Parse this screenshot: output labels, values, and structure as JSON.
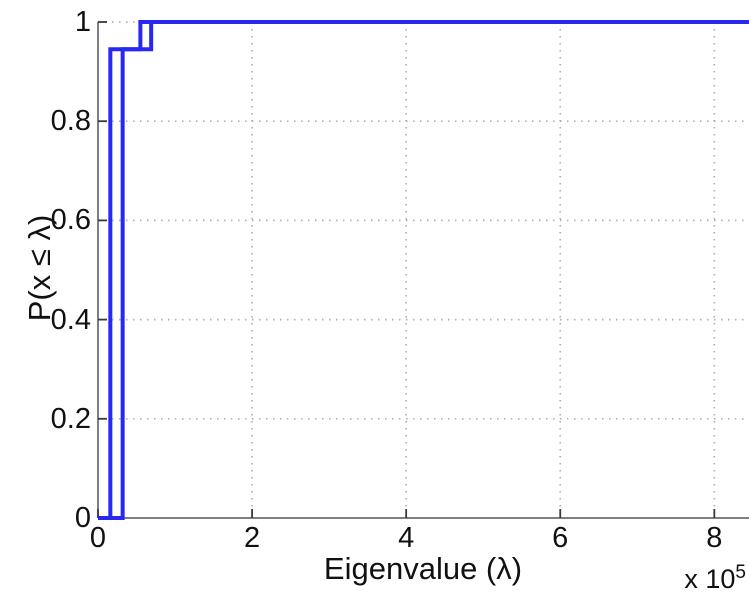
{
  "figure": {
    "background": "#ffffff"
  },
  "chart_data": {
    "type": "line",
    "subtype": "empirical-cdf-step",
    "title": "",
    "xlabel": "Eigenvalue (λ)",
    "ylabel": "P(x ≤ λ)",
    "x_multiplier_prefix": "x 10",
    "x_multiplier_exponent": "5",
    "xlim": [
      0,
      845000
    ],
    "ylim": [
      0,
      1
    ],
    "xtick_values": [
      0,
      200000,
      400000,
      600000,
      800000
    ],
    "xtick_labels": [
      "0",
      "2",
      "4",
      "6",
      "8"
    ],
    "ytick_values": [
      0,
      0.2,
      0.4,
      0.6,
      0.8,
      1
    ],
    "ytick_labels": [
      "0",
      "0.2",
      "0.4",
      "0.6",
      "0.8",
      "1"
    ],
    "grid": true,
    "grid_style": "dotted",
    "grid_color": "#b1b1b1",
    "axis_color": "#555555",
    "tick_color": "#3a3a3a",
    "tick_label_color": "#111111",
    "line_color": "#2828f0",
    "line_width": 4,
    "legend": null,
    "series": [
      {
        "name": "ecdf-curve-1",
        "color": "#2828f0",
        "points": [
          [
            0,
            0
          ],
          [
            16000,
            0
          ],
          [
            16000,
            0.945
          ],
          [
            55000,
            0.945
          ],
          [
            55000,
            1
          ],
          [
            845000,
            1
          ]
        ]
      },
      {
        "name": "ecdf-curve-2",
        "color": "#2828f0",
        "points": [
          [
            0,
            0
          ],
          [
            32000,
            0
          ],
          [
            32000,
            0.945
          ],
          [
            69000,
            0.945
          ],
          [
            69000,
            1
          ],
          [
            845000,
            1
          ]
        ]
      }
    ]
  }
}
